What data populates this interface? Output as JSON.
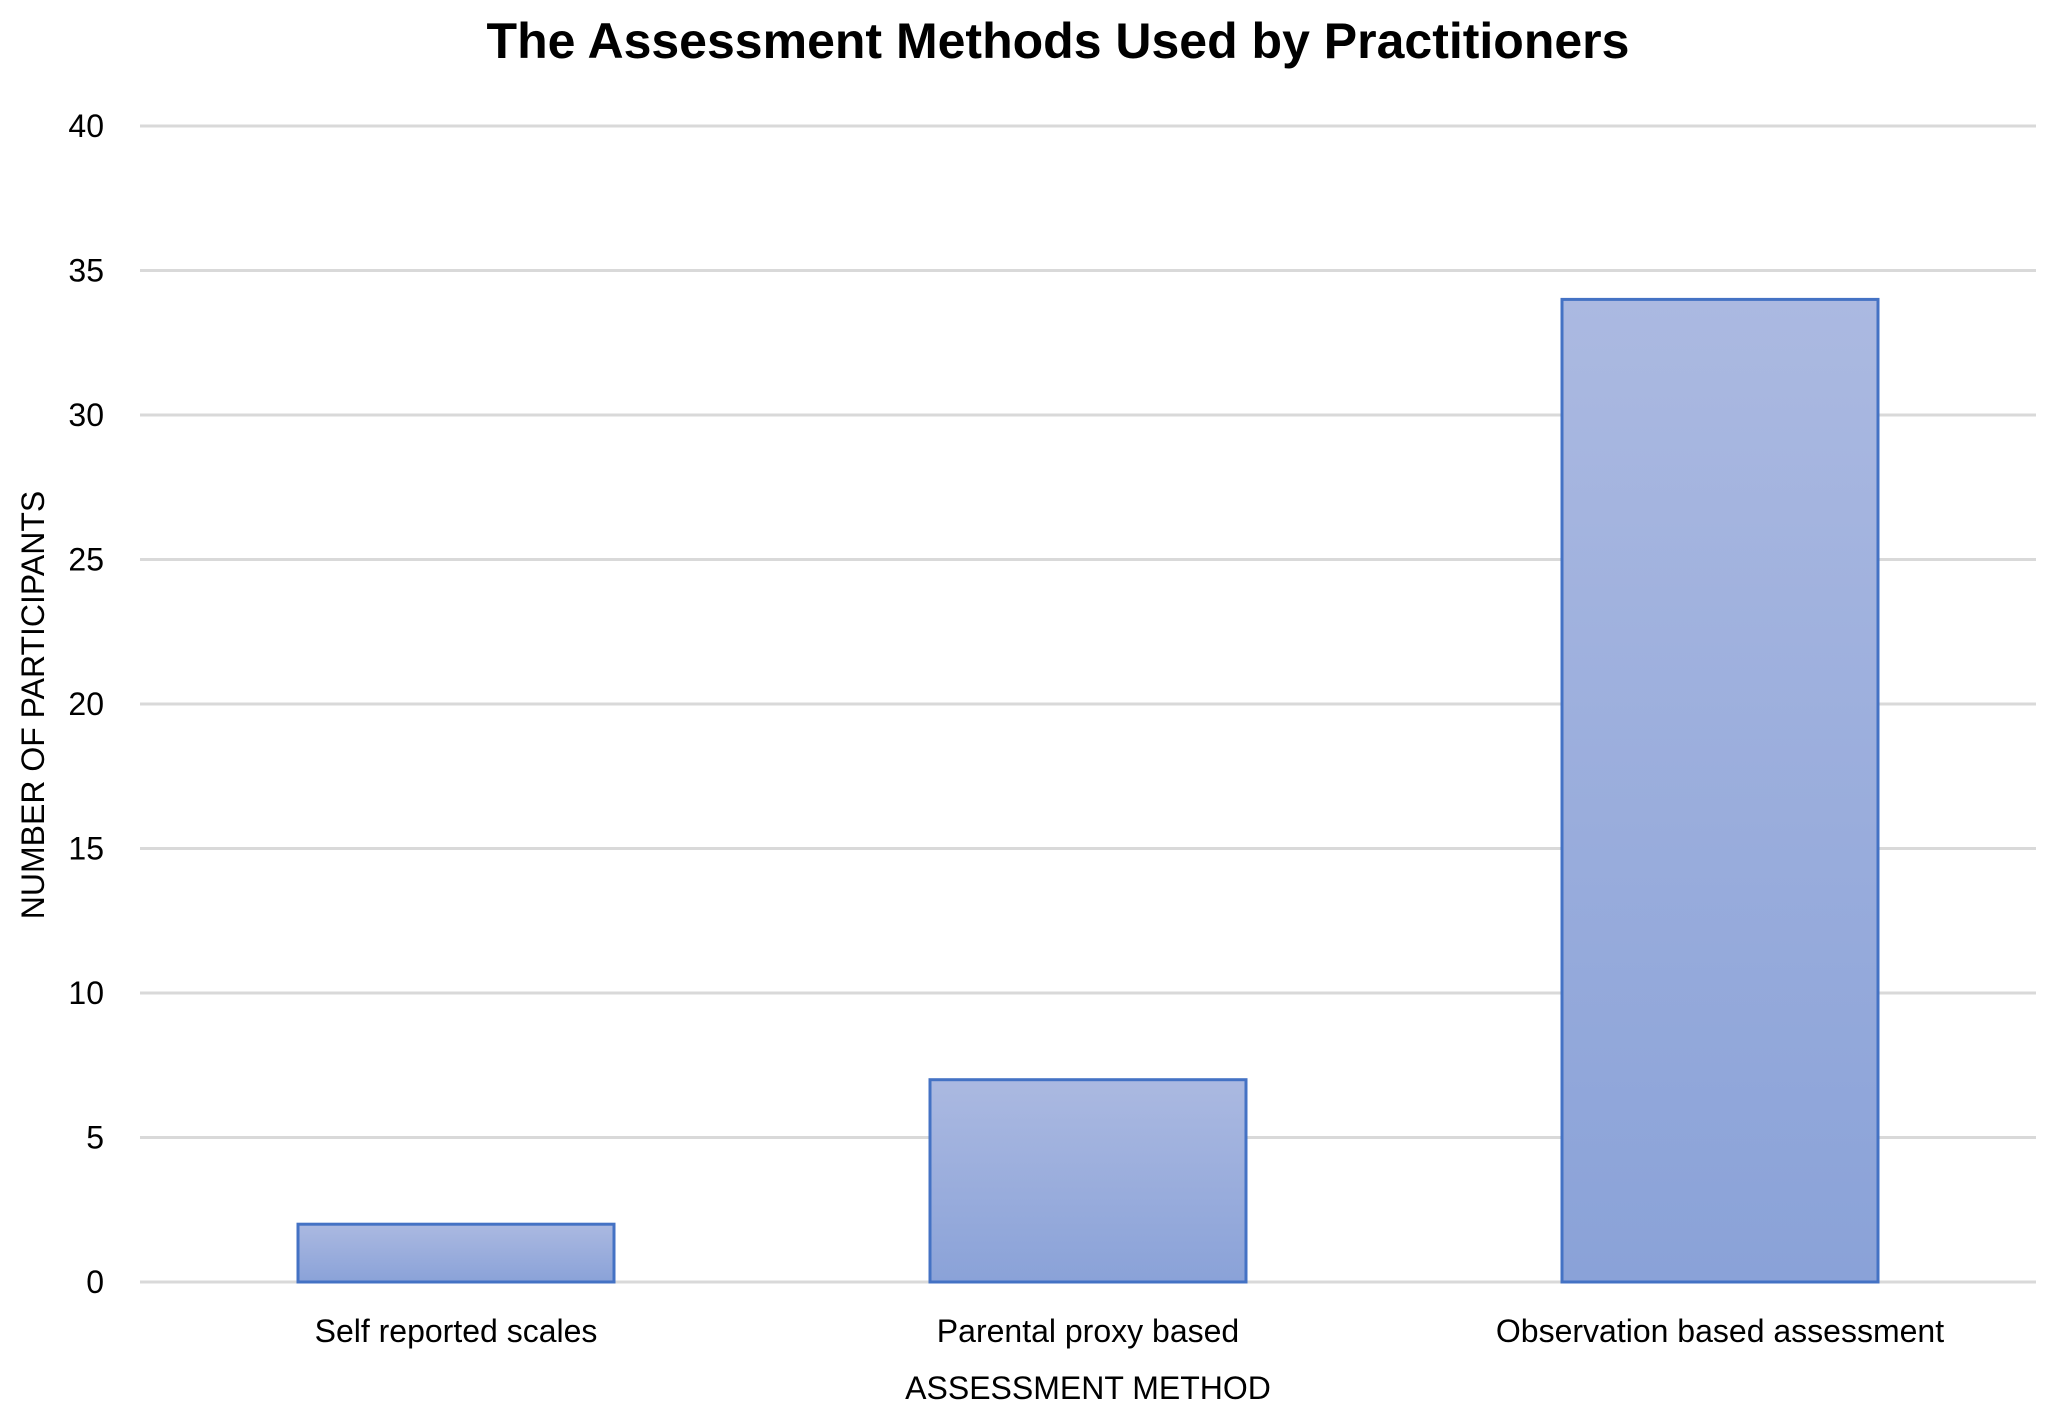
{
  "chart_data": {
    "type": "bar",
    "title": "The Assessment Methods Used by Practitioners",
    "xlabel": "ASSESSMENT METHOD",
    "ylabel": "NUMBER OF PARTICIPANTS",
    "categories": [
      "Self reported scales",
      "Parental proxy based",
      "Observation based assessment"
    ],
    "values": [
      2,
      7,
      34
    ],
    "ylim": [
      0,
      40
    ],
    "yticks": [
      0,
      5,
      10,
      15,
      20,
      25,
      30,
      35,
      40
    ],
    "grid": true,
    "legend": "none",
    "colors": {
      "bar_top": "#abb9e1",
      "bar_bottom": "#8aa2d8",
      "bar_border": "#4472c4",
      "grid": "#d9d9d9"
    }
  }
}
